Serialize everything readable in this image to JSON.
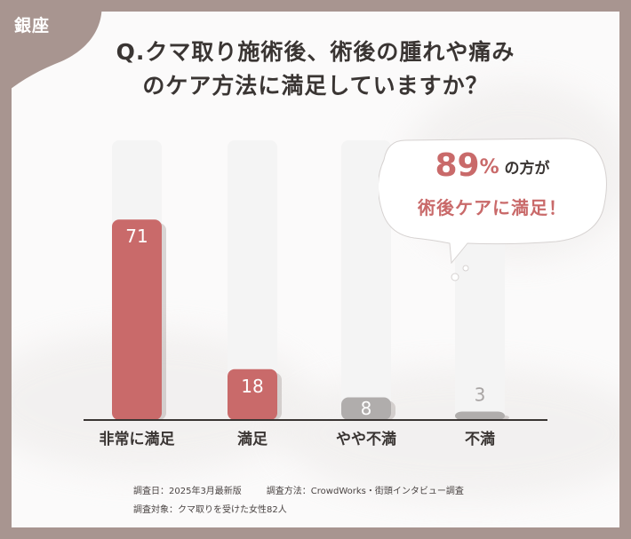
{
  "badge": {
    "location": "銀座"
  },
  "title_lines": [
    "Q.クマ取り施術後、術後の腫れや痛み",
    "のケア方法に満足していますか？"
  ],
  "callout": {
    "percent": "89",
    "percent_sign": "%",
    "line1_suffix": "の方が",
    "line2": "術後ケアに満足！"
  },
  "footer": {
    "date": "調査日：2025年3月最新版",
    "method": "調査方法：CrowdWorks・街頭インタビュー調査",
    "target": "調査対象：クマ取りを受けた女性82人"
  },
  "colors": {
    "frame": "#a89590",
    "highlight": "#c96a6a",
    "muted": "#b0adac",
    "track": "#f4f4f4"
  },
  "chart_data": {
    "type": "bar",
    "categories": [
      "非常に満足",
      "満足",
      "やや不満",
      "不満"
    ],
    "values": [
      71,
      18,
      8,
      3
    ],
    "highlight": [
      true,
      true,
      false,
      false
    ],
    "title": "Q.クマ取り施術後、術後の腫れや痛みのケア方法に満足していますか？",
    "xlabel": "",
    "ylabel": "",
    "ylim": [
      0,
      100
    ],
    "grid": false,
    "legend": "none"
  }
}
